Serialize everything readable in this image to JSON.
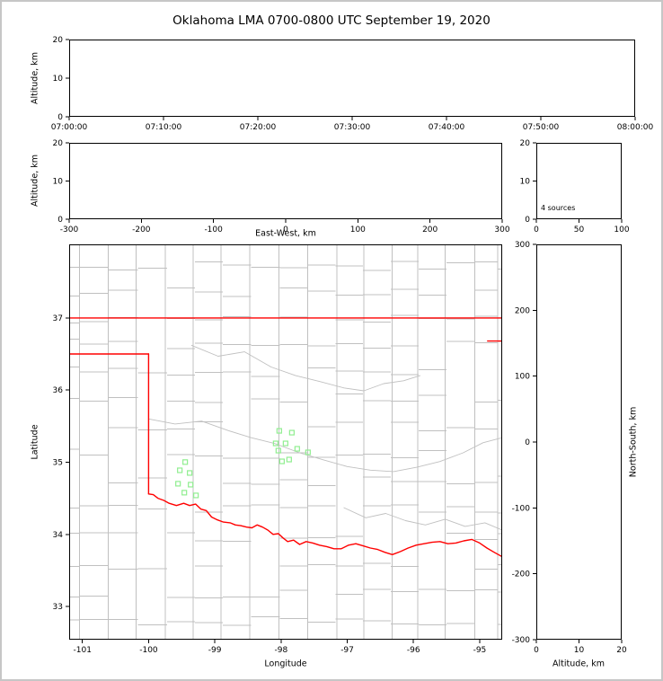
{
  "window": {
    "background": "#ffffff",
    "border_color": "#c6c6c6"
  },
  "title": "Oklahoma LMA 0700-0800 UTC September 19, 2020",
  "colors": {
    "axis": "#000000",
    "county_line": "#c0c0c0",
    "state_border": "#ff0000",
    "station_marker": "#90ee90"
  },
  "chart_data": [
    {
      "id": "time_height",
      "type": "scatter",
      "xlabel": "",
      "ylabel": "Altitude, km",
      "x_tick_labels": [
        "07:00:00",
        "07:10:00",
        "07:20:00",
        "07:30:00",
        "07:40:00",
        "07:50:00",
        "08:00:00"
      ],
      "ylim": [
        0,
        20
      ],
      "yticks": [
        0,
        10,
        20
      ],
      "points": []
    },
    {
      "id": "ew_height",
      "type": "scatter",
      "xlabel": "East-West, km",
      "ylabel": "Altitude, km",
      "xlim": [
        -300,
        300
      ],
      "xticks": [
        -300,
        -200,
        -100,
        0,
        100,
        200,
        300
      ],
      "ylim": [
        0,
        20
      ],
      "yticks": [
        0,
        10,
        20
      ],
      "points": []
    },
    {
      "id": "alt_hist",
      "type": "scatter",
      "annotation": "4 sources",
      "xlim": [
        0,
        100
      ],
      "xticks": [
        0,
        50,
        100
      ],
      "ylim": [
        0,
        20
      ],
      "yticks": [
        0,
        10,
        20
      ],
      "points": []
    },
    {
      "id": "plan_view",
      "type": "scatter",
      "xlabel": "Longitude",
      "ylabel": "Latitude",
      "xlim": [
        -101.2,
        -94.66
      ],
      "xticks": [
        -101,
        -100,
        -99,
        -98,
        -97,
        -96,
        -95
      ],
      "ylim": [
        32.54,
        38.02
      ],
      "yticks": [
        33,
        34,
        35,
        36,
        37
      ],
      "points": [],
      "stations": [
        [
          -99.448,
          35.002
        ],
        [
          -99.529,
          34.888
        ],
        [
          -99.38,
          34.851
        ],
        [
          -99.556,
          34.702
        ],
        [
          -99.366,
          34.689
        ],
        [
          -99.461,
          34.578
        ],
        [
          -99.285,
          34.54
        ],
        [
          -98.027,
          35.435
        ],
        [
          -97.837,
          35.41
        ],
        [
          -98.081,
          35.261
        ],
        [
          -97.932,
          35.261
        ],
        [
          -98.041,
          35.161
        ],
        [
          -97.756,
          35.186
        ],
        [
          -97.593,
          35.137
        ],
        [
          -97.986,
          35.012
        ],
        [
          -97.878,
          35.037
        ]
      ]
    },
    {
      "id": "ns_height",
      "type": "scatter",
      "xlabel": "Altitude, km",
      "ylabel_right": "North-South, km",
      "xlim": [
        0,
        20
      ],
      "xticks": [
        0,
        10,
        20
      ],
      "ylim": [
        -300,
        300
      ],
      "yticks": [
        -300,
        -200,
        -100,
        0,
        100,
        200,
        300
      ],
      "points": []
    }
  ],
  "map": {
    "county_seed": 13,
    "county_cols": [
      -101.05,
      -100.6,
      -100.16,
      -99.72,
      -99.3,
      -98.88,
      -98.45,
      -98.02,
      -97.6,
      -97.18,
      -96.76,
      -96.34,
      -95.92,
      -95.5,
      -95.08,
      -94.72
    ],
    "county_rows": [
      32.8,
      33.18,
      33.58,
      33.97,
      34.36,
      34.74,
      35.12,
      35.5,
      35.88,
      36.26,
      36.64,
      37.0,
      37.36,
      37.72
    ],
    "state_borders": [
      [
        [
          -101.2,
          37.0
        ],
        [
          -94.6,
          37.0
        ]
      ],
      [
        [
          -101.2,
          36.5
        ],
        [
          -100.0,
          36.5
        ]
      ],
      [
        [
          -100.0,
          36.5
        ],
        [
          -100.0,
          34.56
        ]
      ],
      [
        [
          -94.88,
          36.68
        ],
        [
          -94.6,
          36.68
        ]
      ]
    ],
    "red_river": [
      [
        -100.0,
        34.56
      ],
      [
        -99.93,
        34.55
      ],
      [
        -99.86,
        34.5
      ],
      [
        -99.77,
        34.47
      ],
      [
        -99.69,
        34.43
      ],
      [
        -99.58,
        34.4
      ],
      [
        -99.47,
        34.43
      ],
      [
        -99.38,
        34.4
      ],
      [
        -99.29,
        34.42
      ],
      [
        -99.21,
        34.35
      ],
      [
        -99.13,
        34.33
      ],
      [
        -99.05,
        34.24
      ],
      [
        -98.96,
        34.2
      ],
      [
        -98.87,
        34.17
      ],
      [
        -98.77,
        34.16
      ],
      [
        -98.69,
        34.13
      ],
      [
        -98.61,
        34.12
      ],
      [
        -98.52,
        34.1
      ],
      [
        -98.44,
        34.09
      ],
      [
        -98.36,
        34.13
      ],
      [
        -98.28,
        34.1
      ],
      [
        -98.2,
        34.06
      ],
      [
        -98.12,
        34.0
      ],
      [
        -98.04,
        34.01
      ],
      [
        -97.97,
        33.95
      ],
      [
        -97.9,
        33.9
      ],
      [
        -97.81,
        33.92
      ],
      [
        -97.72,
        33.86
      ],
      [
        -97.62,
        33.9
      ],
      [
        -97.52,
        33.88
      ],
      [
        -97.42,
        33.85
      ],
      [
        -97.31,
        33.83
      ],
      [
        -97.2,
        33.8
      ],
      [
        -97.09,
        33.8
      ],
      [
        -96.98,
        33.85
      ],
      [
        -96.87,
        33.87
      ],
      [
        -96.76,
        33.84
      ],
      [
        -96.65,
        33.81
      ],
      [
        -96.54,
        33.79
      ],
      [
        -96.43,
        33.75
      ],
      [
        -96.32,
        33.72
      ],
      [
        -96.2,
        33.76
      ],
      [
        -96.08,
        33.81
      ],
      [
        -95.96,
        33.85
      ],
      [
        -95.84,
        33.87
      ],
      [
        -95.72,
        33.89
      ],
      [
        -95.6,
        33.9
      ],
      [
        -95.48,
        33.87
      ],
      [
        -95.36,
        33.88
      ],
      [
        -95.24,
        33.91
      ],
      [
        -95.12,
        33.93
      ],
      [
        -95.0,
        33.88
      ],
      [
        -94.89,
        33.81
      ],
      [
        -94.78,
        33.75
      ],
      [
        -94.66,
        33.69
      ]
    ],
    "rivers": [
      [
        [
          -100.0,
          35.6
        ],
        [
          -99.6,
          35.53
        ],
        [
          -99.2,
          35.57
        ],
        [
          -98.8,
          35.44
        ],
        [
          -98.45,
          35.34
        ],
        [
          -98.1,
          35.26
        ],
        [
          -97.72,
          35.13
        ],
        [
          -97.35,
          35.03
        ],
        [
          -97.0,
          34.94
        ],
        [
          -96.65,
          34.89
        ],
        [
          -96.3,
          34.87
        ],
        [
          -95.95,
          34.93
        ],
        [
          -95.6,
          35.01
        ],
        [
          -95.25,
          35.13
        ],
        [
          -94.95,
          35.27
        ],
        [
          -94.66,
          35.34
        ]
      ],
      [
        [
          -99.35,
          36.62
        ],
        [
          -98.95,
          36.47
        ],
        [
          -98.55,
          36.53
        ],
        [
          -98.15,
          36.32
        ],
        [
          -97.78,
          36.2
        ],
        [
          -97.42,
          36.12
        ],
        [
          -97.05,
          36.03
        ],
        [
          -96.75,
          35.99
        ],
        [
          -96.45,
          36.09
        ],
        [
          -96.15,
          36.13
        ],
        [
          -95.9,
          36.2
        ]
      ],
      [
        [
          -97.05,
          34.37
        ],
        [
          -96.72,
          34.23
        ],
        [
          -96.42,
          34.29
        ],
        [
          -96.12,
          34.19
        ],
        [
          -95.82,
          34.13
        ],
        [
          -95.52,
          34.21
        ],
        [
          -95.22,
          34.11
        ],
        [
          -94.92,
          34.16
        ],
        [
          -94.66,
          34.06
        ]
      ]
    ]
  }
}
